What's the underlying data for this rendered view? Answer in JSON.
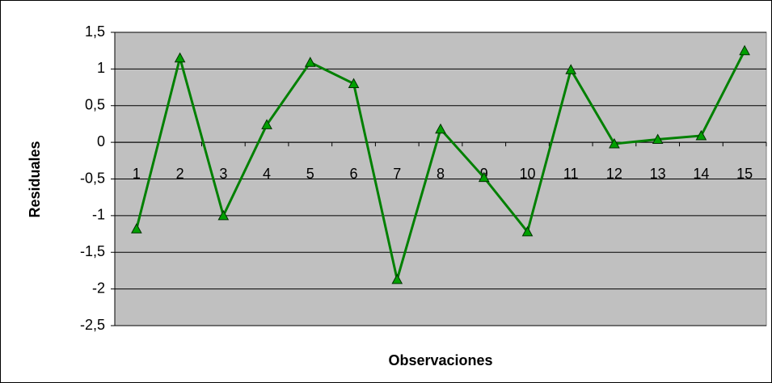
{
  "chart_data": {
    "type": "line",
    "x_label": "Observaciones",
    "y_label": "Residuales",
    "categories": [
      "1",
      "2",
      "3",
      "4",
      "5",
      "6",
      "7",
      "8",
      "9",
      "10",
      "11",
      "12",
      "13",
      "14",
      "15"
    ],
    "series": [
      {
        "color": "#008000",
        "marker_color": "#00a000",
        "values": [
          -1.18,
          1.15,
          -1.0,
          0.24,
          1.09,
          0.8,
          -1.87,
          0.18,
          -0.48,
          -1.22,
          0.99,
          -0.02,
          0.04,
          0.09,
          1.25
        ]
      }
    ],
    "ylim": [
      -2.5,
      1.5
    ],
    "yticks": [
      {
        "value": -2.5,
        "label": "-2,5"
      },
      -2,
      {
        "value": -1.5,
        "label": "-1,5"
      },
      -1,
      {
        "value": -0.5,
        "label": "-0,5"
      },
      0,
      {
        "value": 0.5,
        "label": "0,5"
      },
      1,
      {
        "value": 1.5,
        "label": "1,5"
      }
    ],
    "grid": true,
    "plot_background": "#c0c0c0"
  }
}
